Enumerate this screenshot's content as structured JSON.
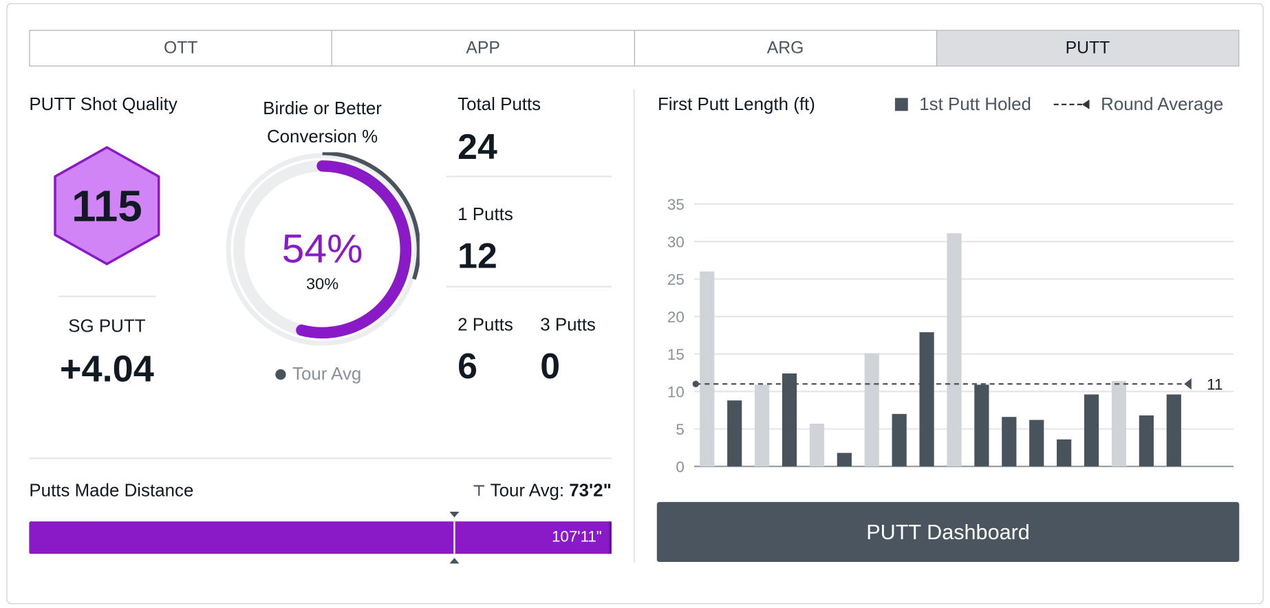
{
  "tabs": [
    {
      "label": "OTT"
    },
    {
      "label": "APP"
    },
    {
      "label": "ARG"
    },
    {
      "label": "PUTT",
      "active": true
    }
  ],
  "shot_quality": {
    "title": "PUTT Shot Quality",
    "value": "115",
    "sg_label": "SG PUTT",
    "sg_value": "+4.04"
  },
  "conversion": {
    "title_line1": "Birdie or Better",
    "title_line2": "Conversion %",
    "value": "54%",
    "tour_value": "30%",
    "value_fraction": 0.54,
    "tour_fraction": 0.3,
    "legend": "Tour Avg"
  },
  "putts": {
    "total_label": "Total Putts",
    "total": "24",
    "one_label": "1 Putts",
    "one": "12",
    "two_label": "2 Putts",
    "two": "6",
    "three_label": "3 Putts",
    "three": "0"
  },
  "distance": {
    "title": "Putts Made Distance",
    "tour_label": "Tour Avg:",
    "tour_value": "73'2\"",
    "value": "107'11\"",
    "tour_fraction": 0.73
  },
  "chart_data": {
    "type": "bar",
    "title": "First Putt Length (ft)",
    "legend": [
      {
        "label": "1st Putt Holed"
      },
      {
        "label": "Round Average"
      }
    ],
    "legend_placement": "top-right",
    "yticks": [
      "0",
      "5",
      "10",
      "15",
      "20",
      "25",
      "30",
      "35"
    ],
    "ylim": [
      0,
      35
    ],
    "values": [
      26,
      8.8,
      10.9,
      12.4,
      5.7,
      1.8,
      15.1,
      7,
      17.9,
      31.1,
      10.9,
      6.6,
      6.2,
      3.6,
      9.6,
      11.4,
      6.8,
      9.6
    ],
    "holed": [
      false,
      true,
      false,
      true,
      false,
      true,
      false,
      true,
      true,
      false,
      true,
      true,
      true,
      true,
      true,
      false,
      true,
      true
    ],
    "round_average": 11,
    "round_average_label": "11",
    "colors": {
      "holed": "#48535c",
      "missed": "#d0d3d7"
    }
  },
  "button": {
    "label": "PUTT Dashboard"
  },
  "colors": {
    "purple": "#8a1ac8",
    "hex_fill": "#d084f5",
    "dark": "#48535c"
  }
}
